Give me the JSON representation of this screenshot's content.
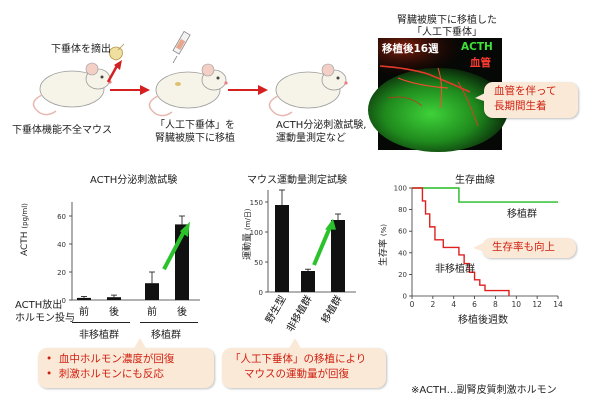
{
  "top": {
    "label_pituitary_removal": "下垂体を摘出",
    "label_hypo_mouse": "下垂体機能不全マウス",
    "label_transplant_1": "「人工下垂体」を",
    "label_transplant_2": "腎臓被膜下に移植",
    "label_tests_1": "ACTH分泌刺激試験,",
    "label_tests_2": "運動量測定など",
    "micro_title_1": "腎臓被膜下に移植した",
    "micro_title_2": "「人工下垂体」",
    "micro_week": "移植後16週",
    "micro_acth": "ACTH",
    "micro_vessel": "血管",
    "callout_line1": "血管を伴って",
    "callout_line2": "長期間生着"
  },
  "colors": {
    "arrow_red": "#d42020",
    "green_arrow": "#2cc22c",
    "callout_bg": "#fbe9d8",
    "callout_text": "#d02010",
    "survival_green": "#22bb22",
    "survival_red": "#e02020"
  },
  "acth_chart": {
    "title": "ACTH分泌刺激試験",
    "ylabel": "ACTH",
    "yunit": "(pg/ml)",
    "yticks": [
      "0",
      "20",
      "40",
      "60"
    ],
    "ylim": [
      0,
      70
    ],
    "row_label_1": "ACTH放出",
    "row_label_2": "ホルモン投与",
    "group_label_1": "非移植群",
    "group_label_2": "移植群",
    "chart_data": {
      "type": "bar",
      "categories": [
        "前",
        "後",
        "前",
        "後"
      ],
      "values": [
        1.5,
        2,
        12,
        54
      ],
      "errors": [
        1,
        1.5,
        8,
        6
      ],
      "ylim": [
        0,
        70
      ]
    }
  },
  "motor_chart": {
    "title": "マウス運動量測定試験",
    "ylabel": "運動量",
    "yunit": "(m/日)",
    "yticks": [
      "0",
      "50",
      "100",
      "150"
    ],
    "chart_data": {
      "type": "bar",
      "categories": [
        "野生型",
        "非移植群",
        "移植群"
      ],
      "values": [
        145,
        35,
        120
      ],
      "errors": [
        25,
        3,
        10
      ],
      "ylim": [
        0,
        170
      ]
    }
  },
  "survival_chart": {
    "title": "生存曲線",
    "ylabel": "生存率",
    "yunit": "(%)",
    "xlabel": "移植後週数",
    "xticks": [
      "0",
      "2",
      "4",
      "6",
      "8",
      "10",
      "12",
      "14"
    ],
    "yticks": [
      "0",
      "20",
      "40",
      "60",
      "80",
      "100"
    ],
    "label_transplant": "移植群",
    "label_nontransplant": "非移植群",
    "callout": "生存率も向上",
    "chart_data": {
      "type": "line",
      "xlim": [
        0,
        14
      ],
      "ylim": [
        0,
        100
      ],
      "series": [
        {
          "name": "移植群",
          "x": [
            0,
            4.5,
            4.5,
            14
          ],
          "y": [
            100,
            100,
            87,
            87
          ]
        },
        {
          "name": "非移植群",
          "x": [
            0,
            1,
            1,
            1.3,
            1.3,
            1.7,
            1.7,
            2.2,
            2.2,
            3,
            3,
            4.5,
            4.5,
            5,
            5,
            5.5,
            5.5,
            6,
            6,
            6.5,
            6.5,
            7,
            7,
            9.3,
            9.3
          ],
          "y": [
            100,
            100,
            88,
            88,
            76,
            76,
            64,
            64,
            52,
            52,
            45,
            45,
            38,
            38,
            30,
            30,
            22,
            22,
            15,
            15,
            10,
            10,
            5,
            5,
            0
          ]
        }
      ]
    }
  },
  "bottom": {
    "callout_left_1": "血中ホルモン濃度が回復",
    "callout_left_2": "刺激ホルモンにも反応",
    "callout_mid_1": "「人工下垂体」の移植により",
    "callout_mid_2": "マウスの運動量が回復",
    "footnote": "※ACTH…副腎皮質刺激ホルモン"
  }
}
